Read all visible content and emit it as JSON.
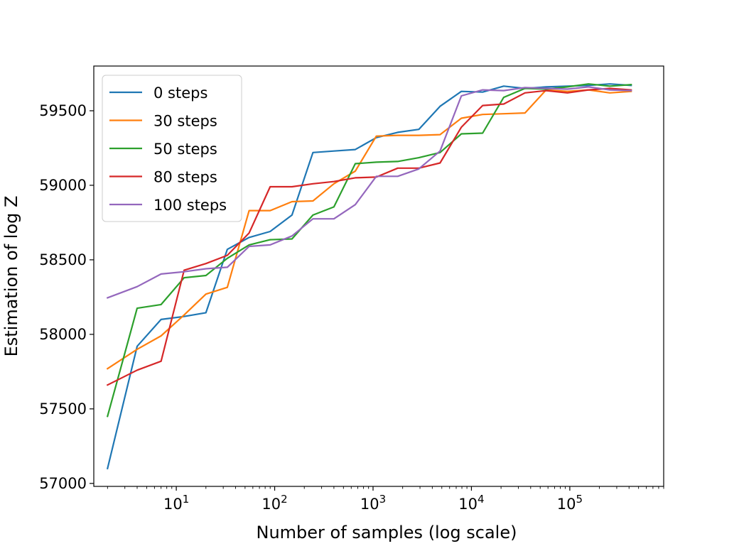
{
  "chart_data": {
    "type": "line",
    "title": "",
    "xlabel": "Number of samples (log scale)",
    "ylabel": "Estimation of log Z",
    "xscale": "log",
    "xlim": [
      1.45,
      900000
    ],
    "ylim": [
      56980,
      59800
    ],
    "yticks": [
      57000,
      57500,
      58000,
      58500,
      59000,
      59500
    ],
    "ytick_labels": [
      "57000",
      "57500",
      "58000",
      "58500",
      "59000",
      "59500"
    ],
    "xticks": [
      10,
      100,
      1000,
      10000,
      100000
    ],
    "xtick_labels": [
      {
        "base": "10",
        "exp": "1"
      },
      {
        "base": "10",
        "exp": "2"
      },
      {
        "base": "10",
        "exp": "3"
      },
      {
        "base": "10",
        "exp": "4"
      },
      {
        "base": "10",
        "exp": "5"
      }
    ],
    "legend_position": "top-left",
    "x": [
      2,
      4,
      7,
      12,
      20,
      33,
      55,
      90,
      150,
      245,
      400,
      660,
      1080,
      1780,
      2920,
      4800,
      7900,
      13000,
      21300,
      35000,
      57500,
      94500,
      155000,
      255000,
      420000
    ],
    "series": [
      {
        "name": "0 steps",
        "color": "#1f77b4",
        "values": [
          57100,
          57920,
          58100,
          58120,
          58145,
          58570,
          58650,
          58690,
          58800,
          59220,
          59230,
          59240,
          59320,
          59355,
          59375,
          59530,
          59630,
          59625,
          59665,
          59650,
          59660,
          59665,
          59670,
          59680,
          59670
        ]
      },
      {
        "name": "30 steps",
        "color": "#ff7f0e",
        "values": [
          57770,
          57900,
          57990,
          58130,
          58270,
          58315,
          58830,
          58830,
          58890,
          58895,
          59010,
          59095,
          59330,
          59335,
          59335,
          59340,
          59450,
          59475,
          59480,
          59485,
          59640,
          59630,
          59640,
          59620,
          59630
        ]
      },
      {
        "name": "50 steps",
        "color": "#2ca02c",
        "values": [
          57450,
          58175,
          58200,
          58380,
          58395,
          58510,
          58600,
          58635,
          58640,
          58800,
          58855,
          59145,
          59155,
          59160,
          59185,
          59220,
          59345,
          59350,
          59590,
          59650,
          59645,
          59660,
          59680,
          59665,
          59675
        ]
      },
      {
        "name": "80 steps",
        "color": "#d62728",
        "values": [
          57660,
          57760,
          57820,
          58430,
          58475,
          58530,
          58680,
          58990,
          58990,
          59010,
          59025,
          59050,
          59055,
          59115,
          59115,
          59150,
          59390,
          59535,
          59545,
          59620,
          59635,
          59620,
          59640,
          59650,
          59640
        ]
      },
      {
        "name": "100 steps",
        "color": "#9467bd",
        "values": [
          58245,
          58320,
          58405,
          58420,
          58440,
          58450,
          58590,
          58600,
          58660,
          58775,
          58775,
          58870,
          59060,
          59060,
          59110,
          59230,
          59600,
          59640,
          59635,
          59655,
          59650,
          59645,
          59660,
          59640,
          59635
        ]
      }
    ]
  }
}
